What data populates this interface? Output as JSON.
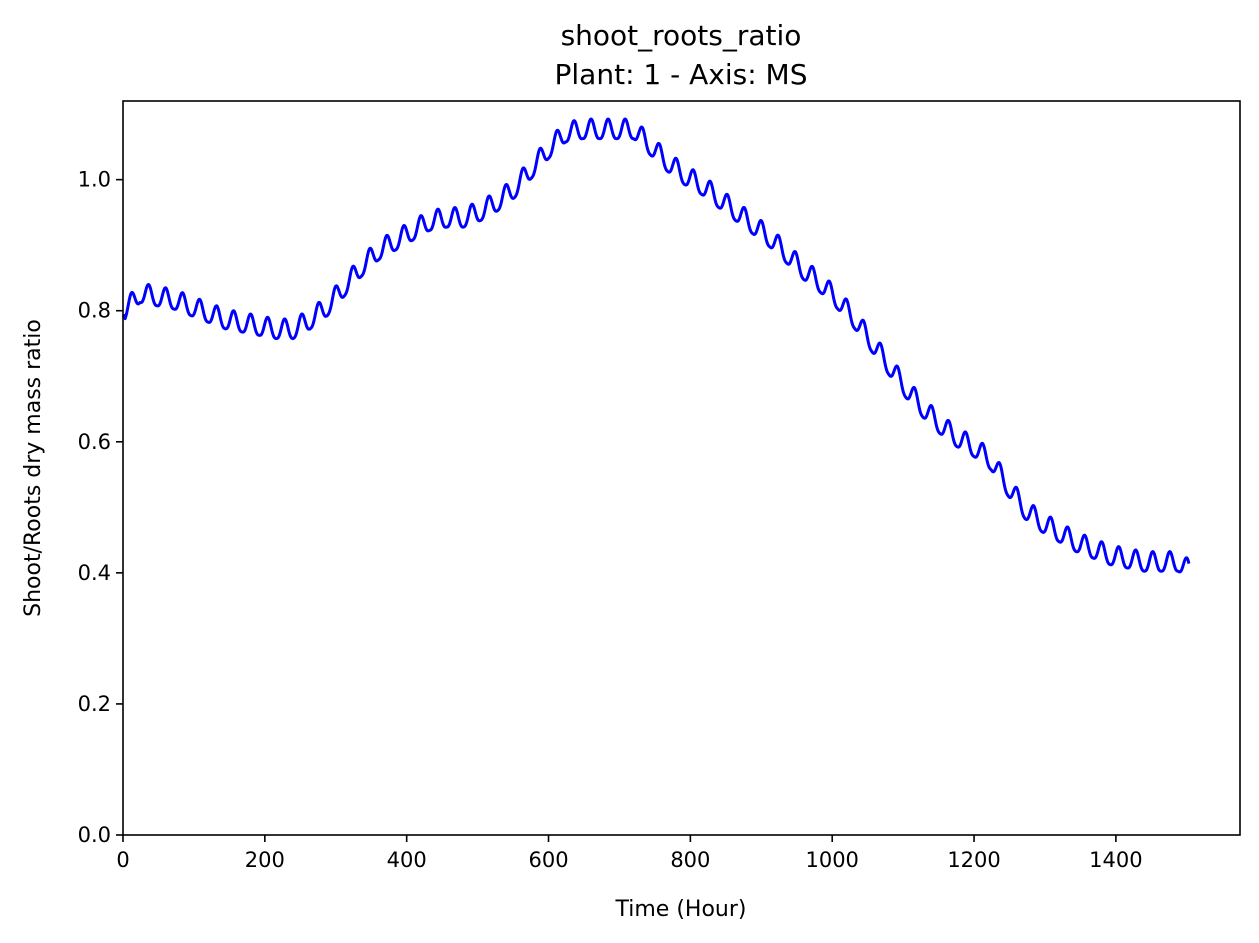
{
  "chart_data": {
    "type": "line",
    "title": "shoot_roots_ratio",
    "subtitle": "Plant: 1 - Axis: MS",
    "xlabel": "Time (Hour)",
    "ylabel": "Shoot/Roots dry mass ratio",
    "xlim": [
      0,
      1575
    ],
    "ylim": [
      0.0,
      1.12
    ],
    "xticks": [
      0,
      200,
      400,
      600,
      800,
      1000,
      1200,
      1400
    ],
    "yticks": [
      0.0,
      0.2,
      0.4,
      0.6,
      0.8,
      1.0
    ],
    "xtick_labels": [
      "0",
      "200",
      "400",
      "600",
      "800",
      "1000",
      "1200",
      "1400"
    ],
    "ytick_labels": [
      "0.0",
      "0.2",
      "0.4",
      "0.6",
      "0.8",
      "1.0"
    ],
    "grid": false,
    "series": [
      {
        "color": "#0000ff",
        "daily_oscillation_period_hours": 24,
        "daily_oscillation_amplitude": 0.015,
        "x": [
          0,
          24,
          48,
          72,
          96,
          120,
          144,
          168,
          192,
          216,
          240,
          264,
          288,
          312,
          336,
          360,
          384,
          408,
          432,
          456,
          480,
          504,
          528,
          552,
          576,
          600,
          624,
          648,
          672,
          696,
          720,
          744,
          768,
          792,
          816,
          840,
          864,
          888,
          912,
          936,
          960,
          984,
          1008,
          1032,
          1056,
          1080,
          1104,
          1128,
          1152,
          1176,
          1200,
          1224,
          1248,
          1272,
          1296,
          1320,
          1344,
          1368,
          1392,
          1416,
          1440,
          1464,
          1488,
          1503
        ],
        "values": [
          0.79,
          0.82,
          0.815,
          0.81,
          0.8,
          0.79,
          0.78,
          0.775,
          0.77,
          0.765,
          0.765,
          0.78,
          0.8,
          0.83,
          0.86,
          0.885,
          0.9,
          0.915,
          0.93,
          0.935,
          0.935,
          0.945,
          0.96,
          0.98,
          1.01,
          1.04,
          1.065,
          1.07,
          1.07,
          1.07,
          1.07,
          1.045,
          1.02,
          1.0,
          0.985,
          0.965,
          0.945,
          0.925,
          0.905,
          0.88,
          0.855,
          0.835,
          0.81,
          0.78,
          0.745,
          0.71,
          0.675,
          0.645,
          0.62,
          0.6,
          0.585,
          0.565,
          0.525,
          0.49,
          0.47,
          0.455,
          0.44,
          0.43,
          0.42,
          0.415,
          0.41,
          0.41,
          0.41,
          0.398
        ]
      }
    ]
  }
}
